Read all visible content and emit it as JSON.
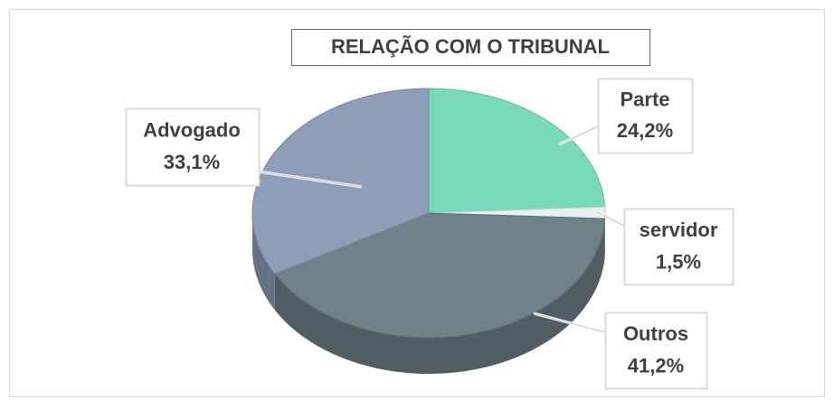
{
  "chart_data": {
    "type": "pie",
    "title": "RELAÇÃO COM O TRIBUNAL",
    "categories": [
      "Parte",
      "servidor",
      "Outros",
      "Advogado"
    ],
    "values": [
      24.2,
      1.5,
      41.2,
      33.1
    ],
    "value_labels": [
      "24,2%",
      "1,5%",
      "41,2%",
      "33,1%"
    ],
    "colors": [
      "#79d9bb",
      "#e6f3ec",
      "#6f8289",
      "#8e9db8"
    ]
  }
}
